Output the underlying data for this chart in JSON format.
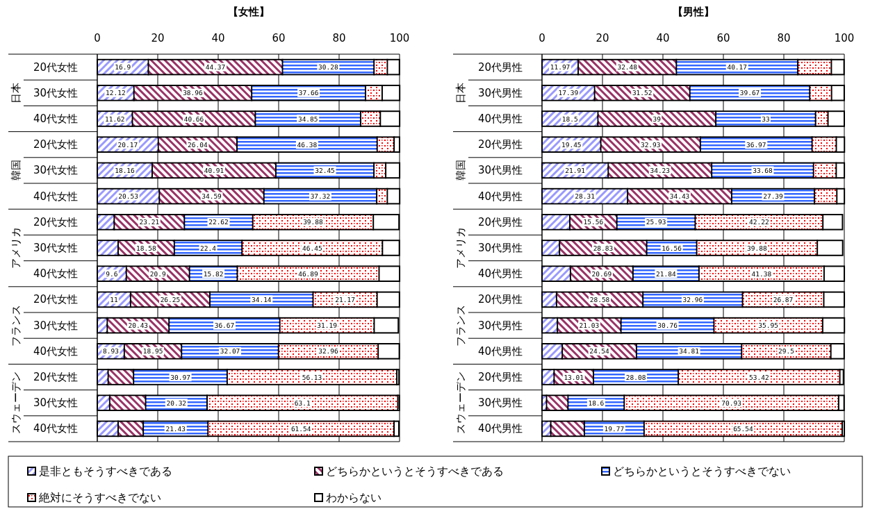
{
  "chart_data": [
    {
      "type": "bar",
      "orientation": "horizontal",
      "stacked": true,
      "title": "【女性】",
      "categories": [
        "20代女性",
        "30代女性",
        "40代女性",
        "20代女性",
        "30代女性",
        "40代女性",
        "20代女性",
        "30代女性",
        "40代女性",
        "20代女性",
        "30代女性",
        "40代女性",
        "20代女性",
        "30代女性",
        "40代女性"
      ],
      "annotations": [
        "日本",
        "韓国",
        "アメリカ",
        "フランス",
        "スウェーデン"
      ],
      "xlim": [
        0,
        100
      ],
      "xticks": [
        0,
        20,
        40,
        60,
        80,
        100
      ],
      "grid": "x",
      "legend": "bottom",
      "series": [
        {
          "name": "是非ともそうすべきである",
          "color": "#9999ff",
          "values": [
            16.9,
            12.12,
            11.62,
            20.17,
            18.16,
            20.53,
            5.6,
            6.9,
            9.6,
            11,
            3.3,
            8.93,
            3.6,
            4.1,
            6.9
          ],
          "value_labels": [
            "16.9",
            "12.12",
            "11.62",
            "20.17",
            "18.16",
            "20.53",
            null,
            null,
            "9.6",
            "11",
            null,
            "8.93",
            null,
            null,
            null
          ]
        },
        {
          "name": "どちらかというとそうすべきである",
          "color": "#993366",
          "values": [
            44.37,
            38.96,
            40.66,
            26.04,
            40.91,
            34.59,
            23.21,
            18.58,
            20.9,
            26.25,
            20.43,
            18.95,
            8.4,
            11.9,
            8.3
          ],
          "value_labels": [
            "44.37",
            "38.96",
            "40.66",
            "26.04",
            "40.91",
            "34.59",
            "23.21",
            "18.58",
            "20.9",
            "26.25",
            "20.43",
            "18.95",
            null,
            null,
            null
          ]
        },
        {
          "name": "どちらかというとそうすべきでない",
          "color": "#3366ff",
          "values": [
            30.28,
            37.66,
            34.85,
            46.38,
            32.45,
            37.32,
            22.62,
            22.4,
            15.82,
            34.14,
            36.67,
            32.07,
            30.97,
            20.32,
            21.43
          ],
          "value_labels": [
            "30.28",
            "37.66",
            "34.85",
            "46.38",
            "32.45",
            "37.32",
            "22.62",
            "22.4",
            "15.82",
            "34.14",
            "36.67",
            "32.07",
            "30.97",
            "20.32",
            "21.43"
          ]
        },
        {
          "name": "絶対にそうすべきでない",
          "color": "#ff0000",
          "values": [
            4.4,
            5.5,
            6.5,
            5.6,
            3.9,
            3.5,
            39.88,
            46.45,
            46.89,
            21.17,
            31.19,
            32.96,
            56.13,
            63.1,
            61.54
          ],
          "value_labels": [
            null,
            null,
            null,
            null,
            null,
            null,
            "39.88",
            "46.45",
            "46.89",
            "21.17",
            "31.19",
            "32.96",
            "56.13",
            "63.1",
            "61.54"
          ]
        },
        {
          "name": "わからない",
          "color": "#ffffff",
          "values": [
            4.0,
            5.8,
            6.4,
            1.8,
            4.6,
            4.1,
            8.5,
            5.6,
            6.8,
            7.4,
            8.0,
            7.0,
            0.7,
            0.5,
            1.6
          ]
        }
      ]
    },
    {
      "type": "bar",
      "orientation": "horizontal",
      "stacked": true,
      "title": "【男性】",
      "categories": [
        "20代男性",
        "30代男性",
        "40代男性",
        "20代男性",
        "30代男性",
        "40代男性",
        "20代男性",
        "30代男性",
        "40代男性",
        "20代男性",
        "30代男性",
        "40代男性",
        "20代男性",
        "30代男性",
        "40代男性"
      ],
      "annotations": [
        "日本",
        "韓国",
        "アメリカ",
        "フランス",
        "スウェーデン"
      ],
      "xlim": [
        0,
        100
      ],
      "xticks": [
        0,
        20,
        40,
        60,
        80,
        100
      ],
      "grid": "x",
      "series": [
        {
          "color": "#9999ff",
          "values": [
            11.97,
            17.39,
            18.5,
            19.45,
            21.91,
            28.31,
            9.2,
            5.8,
            9.4,
            4.8,
            5.1,
            6.7,
            4.0,
            1.5,
            2.9
          ],
          "value_labels": [
            "11.97",
            "17.39",
            "18.5",
            "19.45",
            "21.91",
            "28.31",
            null,
            null,
            null,
            null,
            null,
            null,
            null,
            null,
            null
          ]
        },
        {
          "color": "#993366",
          "values": [
            32.48,
            31.52,
            39,
            32.93,
            34.23,
            34.43,
            15.56,
            28.83,
            20.69,
            28.58,
            21.03,
            24.54,
            13.01,
            7.1,
            11.1
          ],
          "value_labels": [
            "32.48",
            "31.52",
            "39",
            "32.93",
            "34.23",
            "34.43",
            "15.56",
            "28.83",
            "20.69",
            "28.58",
            "21.03",
            "24.54",
            "13.01",
            null,
            null
          ]
        },
        {
          "color": "#3366ff",
          "values": [
            40.17,
            39.67,
            33,
            36.97,
            33.68,
            27.39,
            25.93,
            16.56,
            21.84,
            32.96,
            30.76,
            34.81,
            28.08,
            18.6,
            19.77
          ],
          "value_labels": [
            "40.17",
            "39.67",
            "33",
            "36.97",
            "33.68",
            "27.39",
            "25.93",
            "16.56",
            "21.84",
            "32.96",
            "30.76",
            "34.81",
            "28.08",
            "18.6",
            "19.77"
          ]
        },
        {
          "color": "#ff0000",
          "values": [
            11.1,
            7.2,
            4.1,
            8.0,
            7.5,
            7.4,
            42.22,
            39.88,
            41.38,
            26.87,
            35.95,
            29.5,
            53.42,
            70.93,
            65.54
          ],
          "value_labels": [
            null,
            null,
            null,
            null,
            null,
            null,
            "42.22",
            "39.88",
            "41.38",
            "26.87",
            "35.95",
            "29.5",
            "53.42",
            "70.93",
            "65.54"
          ]
        },
        {
          "color": "#ffffff",
          "values": [
            4.2,
            4.2,
            5.4,
            2.7,
            2.7,
            2.5,
            6.5,
            8.4,
            6.7,
            6.8,
            7.2,
            4.4,
            1.2,
            1.8,
            0.7
          ]
        }
      ]
    }
  ]
}
